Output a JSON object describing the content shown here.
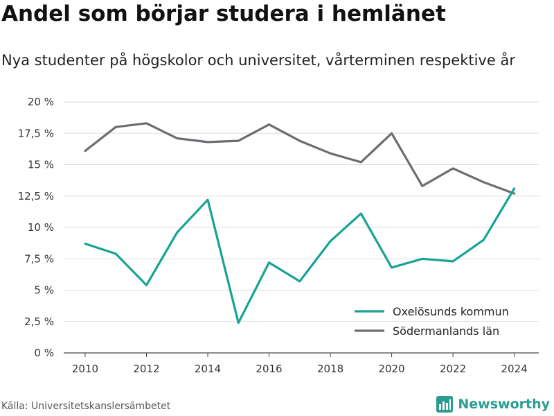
{
  "title": "Andel som börjar studera i hemlänet",
  "subtitle": "Nya studenter på högskolor och universitet, vårterminen respektive år",
  "source": "Källa: Universitetskanslersämbetet",
  "brand": "Newsworthy",
  "chart_data": {
    "type": "line",
    "x": [
      2010,
      2011,
      2012,
      2013,
      2014,
      2015,
      2016,
      2017,
      2018,
      2019,
      2020,
      2021,
      2022,
      2023,
      2024
    ],
    "xticks": [
      "2010",
      "2012",
      "2014",
      "2016",
      "2018",
      "2020",
      "2022",
      "2024"
    ],
    "yticks": [
      "0 %",
      "2,5 %",
      "5 %",
      "7,5 %",
      "10 %",
      "12,5 %",
      "15 %",
      "17,5 %",
      "20 %"
    ],
    "ylim": [
      0,
      20
    ],
    "grid": true,
    "legend_position": "bottom-right",
    "series": [
      {
        "name": "Oxelösunds kommun",
        "color": "#16a394",
        "values": [
          8.7,
          7.9,
          5.4,
          9.6,
          12.2,
          2.4,
          7.2,
          5.7,
          8.9,
          11.1,
          6.8,
          7.5,
          7.3,
          9.0,
          13.1
        ]
      },
      {
        "name": "Södermanlands län",
        "color": "#6d6c72",
        "values": [
          16.1,
          18.0,
          18.3,
          17.1,
          16.8,
          16.9,
          18.2,
          16.9,
          15.9,
          15.2,
          17.5,
          13.3,
          14.7,
          13.6,
          12.7
        ]
      }
    ]
  }
}
